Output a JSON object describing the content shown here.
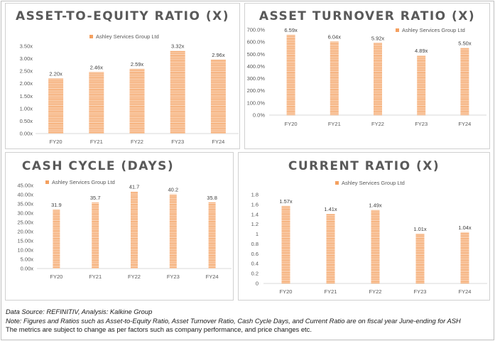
{
  "panels": [
    {
      "id": "ate",
      "title": "ASSET-TO-EQUITY RATIO (X)",
      "legend": "Ashley Services Group Ltd",
      "chart_data": {
        "type": "bar",
        "title": "ASSET-TO-EQUITY RATIO (X)",
        "categories": [
          "FY20",
          "FY21",
          "FY22",
          "FY23",
          "FY24"
        ],
        "series": [
          {
            "name": "Ashley Services Group Ltd",
            "values": [
              2.2,
              2.46,
              2.59,
              3.32,
              2.96
            ]
          }
        ],
        "data_labels": [
          "2.20x",
          "2.46x",
          "2.59x",
          "3.32x",
          "2.96x"
        ],
        "yticks": [
          "0.00x",
          "0.50x",
          "1.00x",
          "1.50x",
          "2.00x",
          "2.50x",
          "3.00x",
          "3.50x"
        ],
        "ylim": [
          0,
          3.5
        ],
        "grid": false,
        "legend_position": "top-left"
      }
    },
    {
      "id": "atr",
      "title": "ASSET TURNOVER RATIO (X)",
      "legend": "Ashley Services Group Ltd",
      "chart_data": {
        "type": "bar",
        "title": "ASSET TURNOVER RATIO (X)",
        "categories": [
          "FY20",
          "FY21",
          "FY22",
          "FY23",
          "FY24"
        ],
        "series": [
          {
            "name": "Ashley Services Group Ltd",
            "values": [
              6.59,
              6.04,
              5.92,
              4.89,
              5.5
            ]
          }
        ],
        "data_labels": [
          "6.59x",
          "6.04x",
          "5.92x",
          "4.89x",
          "5.50x"
        ],
        "yticks": [
          "0.0%",
          "100.0%",
          "200.0%",
          "300.0%",
          "400.0%",
          "500.0%",
          "600.0%",
          "700.0%"
        ],
        "ylim": [
          0,
          7
        ],
        "grid": false,
        "legend_position": "top-right"
      }
    },
    {
      "id": "cc",
      "title": "CASH CYCLE (DAYS)",
      "legend": "Ashley Services Group Ltd",
      "chart_data": {
        "type": "bar",
        "title": "CASH CYCLE (DAYS)",
        "categories": [
          "FY20",
          "FY21",
          "FY22",
          "FY23",
          "FY24"
        ],
        "series": [
          {
            "name": "Ashley Services Group Ltd",
            "values": [
              31.9,
              35.7,
              41.7,
              40.2,
              35.8
            ]
          }
        ],
        "data_labels": [
          "31.9",
          "35.7",
          "41.7",
          "40.2",
          "35.8"
        ],
        "yticks": [
          "0.00x",
          "5.00x",
          "10.00x",
          "15.00x",
          "20.00x",
          "25.00x",
          "30.00x",
          "35.00x",
          "40.00x",
          "45.00x"
        ],
        "ylim": [
          0,
          45
        ],
        "grid": false,
        "legend_position": "top-left"
      }
    },
    {
      "id": "cr",
      "title": "CURRENT RATIO (X)",
      "legend": "Ashley Services Group Ltd",
      "chart_data": {
        "type": "bar",
        "title": "CURRENT RATIO (X)",
        "categories": [
          "FY20",
          "FY21",
          "FY22",
          "FY23",
          "FY24"
        ],
        "series": [
          {
            "name": "Ashley Services Group Ltd",
            "values": [
              1.57,
              1.41,
              1.49,
              1.01,
              1.04
            ]
          }
        ],
        "data_labels": [
          "1.57x",
          "1.41x",
          "1.49x",
          "1.01x",
          "1.04x"
        ],
        "yticks": [
          "0",
          "0.2",
          "0.4",
          "0.6",
          "0.8",
          "1",
          "1.2",
          "1.4",
          "1.6",
          "1.8"
        ],
        "ylim": [
          0,
          1.8
        ],
        "grid": false,
        "legend_position": "top-center"
      }
    }
  ],
  "notes": {
    "source": "Data Source: REFINITIV, Analysis: Kalkine Group",
    "note": "Note: Figures and Ratios such as Asset-to-Equity Ratio, Asset Turnover Ratio, Cash Cycle Days, and Current Ratio are on fiscal year June-ending for ASH",
    "disclaimer": "The metrics are subject to change as per factors such as company performance, and price changes etc."
  },
  "colors": {
    "bar": "#f4a060",
    "bar_stripe": "#ffffff",
    "axis": "#d9d9d9",
    "text": "#595959"
  }
}
